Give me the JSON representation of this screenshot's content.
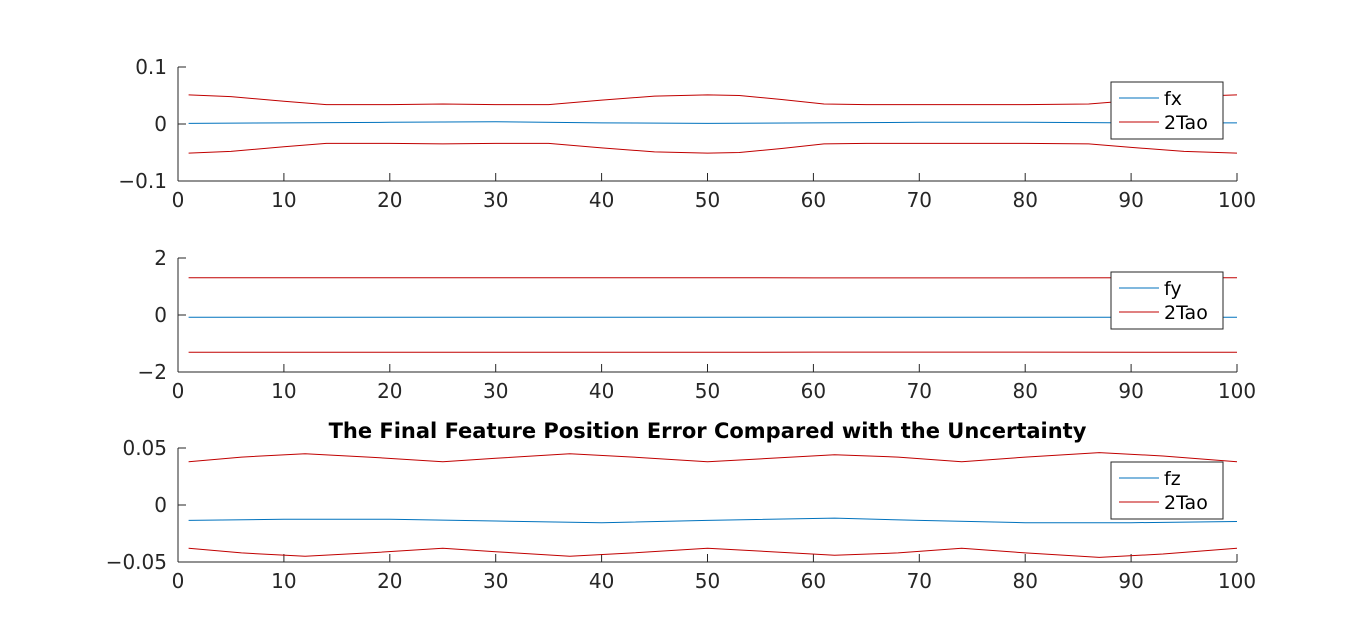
{
  "chart_data": [
    {
      "type": "line",
      "title": "",
      "xlabel": "",
      "ylabel": "",
      "xlim": [
        0,
        100
      ],
      "ylim": [
        -0.1,
        0.1
      ],
      "xticks": [
        0,
        10,
        20,
        30,
        40,
        50,
        60,
        70,
        80,
        90,
        100
      ],
      "xtick_labels": [
        "0",
        "10",
        "20",
        "30",
        "40",
        "50",
        "60",
        "70",
        "80",
        "90",
        "100"
      ],
      "yticks": [
        -0.1,
        0,
        0.1
      ],
      "ytick_labels": [
        "−0.1",
        "0",
        "0.1"
      ],
      "legend_position": "top-right",
      "grid": false,
      "series": [
        {
          "name": "fx",
          "color": "#0072BD",
          "x": [
            1,
            10,
            20,
            30,
            40,
            50,
            60,
            70,
            80,
            90,
            100
          ],
          "y": [
            0.001,
            0.002,
            0.003,
            0.004,
            0.002,
            0.001,
            0.002,
            0.003,
            0.003,
            0.002,
            0.002
          ]
        },
        {
          "name": "2Tao",
          "color": "#C00000",
          "mirror": true,
          "x": [
            1,
            5,
            10,
            14,
            20,
            25,
            30,
            35,
            40,
            45,
            50,
            53,
            57,
            61,
            65,
            70,
            75,
            80,
            86,
            90,
            95,
            100
          ],
          "y": [
            0.051,
            0.048,
            0.04,
            0.034,
            0.034,
            0.035,
            0.034,
            0.034,
            0.042,
            0.049,
            0.051,
            0.05,
            0.043,
            0.035,
            0.034,
            0.034,
            0.034,
            0.034,
            0.035,
            0.041,
            0.048,
            0.051
          ]
        }
      ]
    },
    {
      "type": "line",
      "title": "",
      "xlabel": "",
      "ylabel": "",
      "xlim": [
        0,
        100
      ],
      "ylim": [
        -2,
        2
      ],
      "xticks": [
        0,
        10,
        20,
        30,
        40,
        50,
        60,
        70,
        80,
        90,
        100
      ],
      "xtick_labels": [
        "0",
        "10",
        "20",
        "30",
        "40",
        "50",
        "60",
        "70",
        "80",
        "90",
        "100"
      ],
      "yticks": [
        -2,
        0,
        2
      ],
      "ytick_labels": [
        "−2",
        "0",
        "2"
      ],
      "legend_position": "top-right",
      "grid": false,
      "series": [
        {
          "name": "fy",
          "color": "#0072BD",
          "x": [
            1,
            20,
            40,
            60,
            80,
            100
          ],
          "y": [
            -0.08,
            -0.08,
            -0.08,
            -0.08,
            -0.08,
            -0.08
          ]
        },
        {
          "name": "2Tao",
          "color": "#C00000",
          "mirror": true,
          "x": [
            1,
            20,
            40,
            50,
            60,
            70,
            80,
            100
          ],
          "y": [
            1.31,
            1.31,
            1.31,
            1.31,
            1.3,
            1.3,
            1.3,
            1.31
          ]
        }
      ]
    },
    {
      "type": "line",
      "title": "The Final Feature Position Error Compared with the Uncertainty",
      "xlabel": "",
      "ylabel": "",
      "xlim": [
        0,
        100
      ],
      "ylim": [
        -0.05,
        0.05
      ],
      "xticks": [
        0,
        10,
        20,
        30,
        40,
        50,
        60,
        70,
        80,
        90,
        100
      ],
      "xtick_labels": [
        "0",
        "10",
        "20",
        "30",
        "40",
        "50",
        "60",
        "70",
        "80",
        "90",
        "100"
      ],
      "yticks": [
        -0.05,
        0,
        0.05
      ],
      "ytick_labels": [
        "−0.05",
        "0",
        "0.05"
      ],
      "legend_position": "top-right",
      "grid": false,
      "series": [
        {
          "name": "fz",
          "color": "#0072BD",
          "x": [
            1,
            10,
            20,
            30,
            40,
            50,
            62,
            70,
            80,
            90,
            100
          ],
          "y": [
            -0.0135,
            -0.0125,
            -0.0125,
            -0.014,
            -0.0155,
            -0.0135,
            -0.0115,
            -0.0135,
            -0.0155,
            -0.0155,
            -0.0145
          ]
        },
        {
          "name": "2Tao",
          "color": "#C00000",
          "mirror": true,
          "x": [
            1,
            6,
            12,
            18,
            25,
            30,
            37,
            43,
            50,
            56,
            62,
            68,
            74,
            80,
            87,
            93,
            100
          ],
          "y": [
            0.038,
            0.042,
            0.045,
            0.042,
            0.038,
            0.041,
            0.045,
            0.042,
            0.038,
            0.041,
            0.044,
            0.042,
            0.038,
            0.042,
            0.046,
            0.043,
            0.038
          ]
        }
      ]
    }
  ]
}
